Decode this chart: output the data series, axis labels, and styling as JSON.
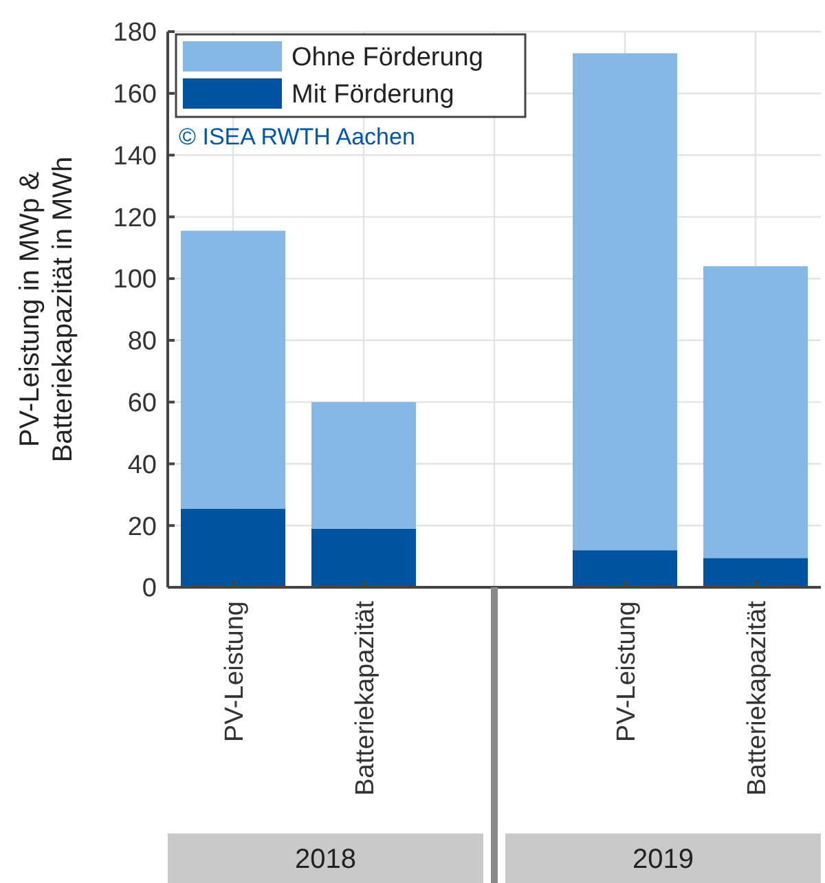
{
  "chart_data": {
    "type": "bar",
    "stacked": true,
    "ylabel": "PV-Leistung in MWp &\nBatteriekapazität in MWh",
    "categories": [
      "PV-Leistung",
      "Batteriekapazität",
      null,
      "PV-Leistung",
      "Batteriekapazität"
    ],
    "series": [
      {
        "name": "Mit Förderung",
        "color": "#00539f",
        "values": [
          25.5,
          19,
          null,
          12,
          9.5
        ]
      },
      {
        "name": "Ohne Förderung",
        "color": "#85b8e5",
        "values": [
          90,
          41,
          null,
          161,
          94.5
        ]
      }
    ],
    "ylim": [
      0,
      180
    ],
    "yticks": [
      0,
      20,
      40,
      60,
      80,
      100,
      120,
      140,
      160,
      180
    ],
    "grid": true,
    "legend": "top left",
    "annotations": [
      "© ISEA RWTH Aachen",
      "2018",
      "2019"
    ]
  }
}
